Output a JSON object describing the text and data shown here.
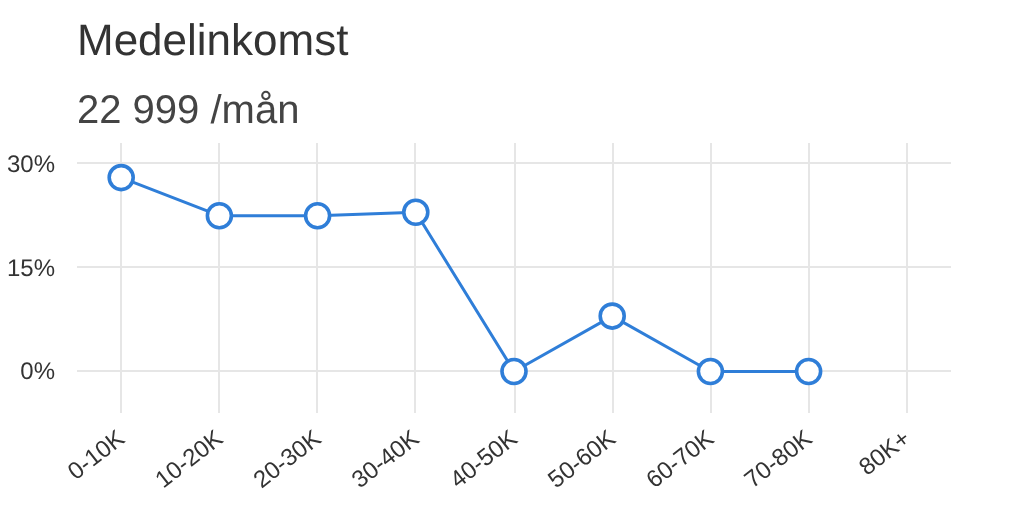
{
  "chart_data": {
    "type": "line",
    "title": "Medelinkomst",
    "subtitle": "22 999 /mån",
    "categories": [
      "0-10K",
      "10-20K",
      "20-30K",
      "30-40K",
      "40-50K",
      "50-60K",
      "60-70K",
      "70-80K",
      "80K+"
    ],
    "values": [
      28,
      22.5,
      22.5,
      23,
      0,
      8,
      0,
      0,
      null
    ],
    "color": "#2f7ed8",
    "marker": "circle",
    "line_style": "solid",
    "grid": true,
    "ylim": [
      -6,
      33
    ],
    "yticks": [
      {
        "value": 0,
        "label": "0%"
      },
      {
        "value": 15,
        "label": "15%"
      },
      {
        "value": 30,
        "label": "30%"
      }
    ]
  }
}
